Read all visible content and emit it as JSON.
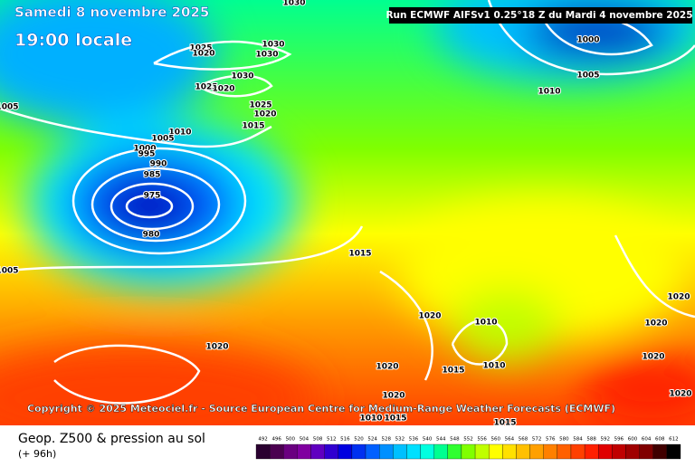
{
  "header": {
    "date": "Samedi 8 novembre 2025",
    "time": "19:00 locale",
    "run": "Run ECMWF AIFSv1 0.25°18 Z du Mardi 4 novembre 2025"
  },
  "copyright": "Copyright © 2025 Meteociel.fr - Source European Centre for Medium-Range Weather Forecasts (ECMWF)",
  "footer": {
    "title": "Geop. Z500 & pression au sol",
    "lead": "(+ 96h)"
  },
  "isobar_labels": [
    "1030",
    "1025",
    "1020",
    "1030",
    "1030",
    "1030",
    "1025",
    "1020",
    "1025",
    "1020",
    "1015",
    "1010",
    "1005",
    "1000",
    "995",
    "990",
    "985",
    "975",
    "980",
    "1005",
    "1005",
    "1015",
    "1020",
    "1020",
    "1020",
    "1015",
    "1010",
    "1010",
    "1020",
    "1020",
    "1015",
    "1010",
    "1000",
    "1005",
    "1010",
    "1020",
    "1020",
    "1020",
    "1015"
  ],
  "scale": {
    "values": [
      492,
      496,
      500,
      504,
      508,
      512,
      516,
      520,
      524,
      528,
      532,
      536,
      540,
      544,
      548,
      552,
      556,
      560,
      564,
      568,
      572,
      576,
      580,
      584,
      588,
      592,
      596,
      600,
      604,
      608,
      612
    ],
    "colors": [
      "#2a0030",
      "#4b0050",
      "#6a0080",
      "#8000a0",
      "#6000c0",
      "#3000d0",
      "#0000e0",
      "#0030f0",
      "#0060ff",
      "#0090ff",
      "#00c0ff",
      "#00e0ff",
      "#00ffe0",
      "#00ff90",
      "#30ff30",
      "#80ff00",
      "#c0ff00",
      "#ffff00",
      "#ffe000",
      "#ffc000",
      "#ffa000",
      "#ff8000",
      "#ff6000",
      "#ff4000",
      "#ff2000",
      "#e00000",
      "#c00000",
      "#a00000",
      "#800000",
      "#400000",
      "#000000"
    ]
  }
}
